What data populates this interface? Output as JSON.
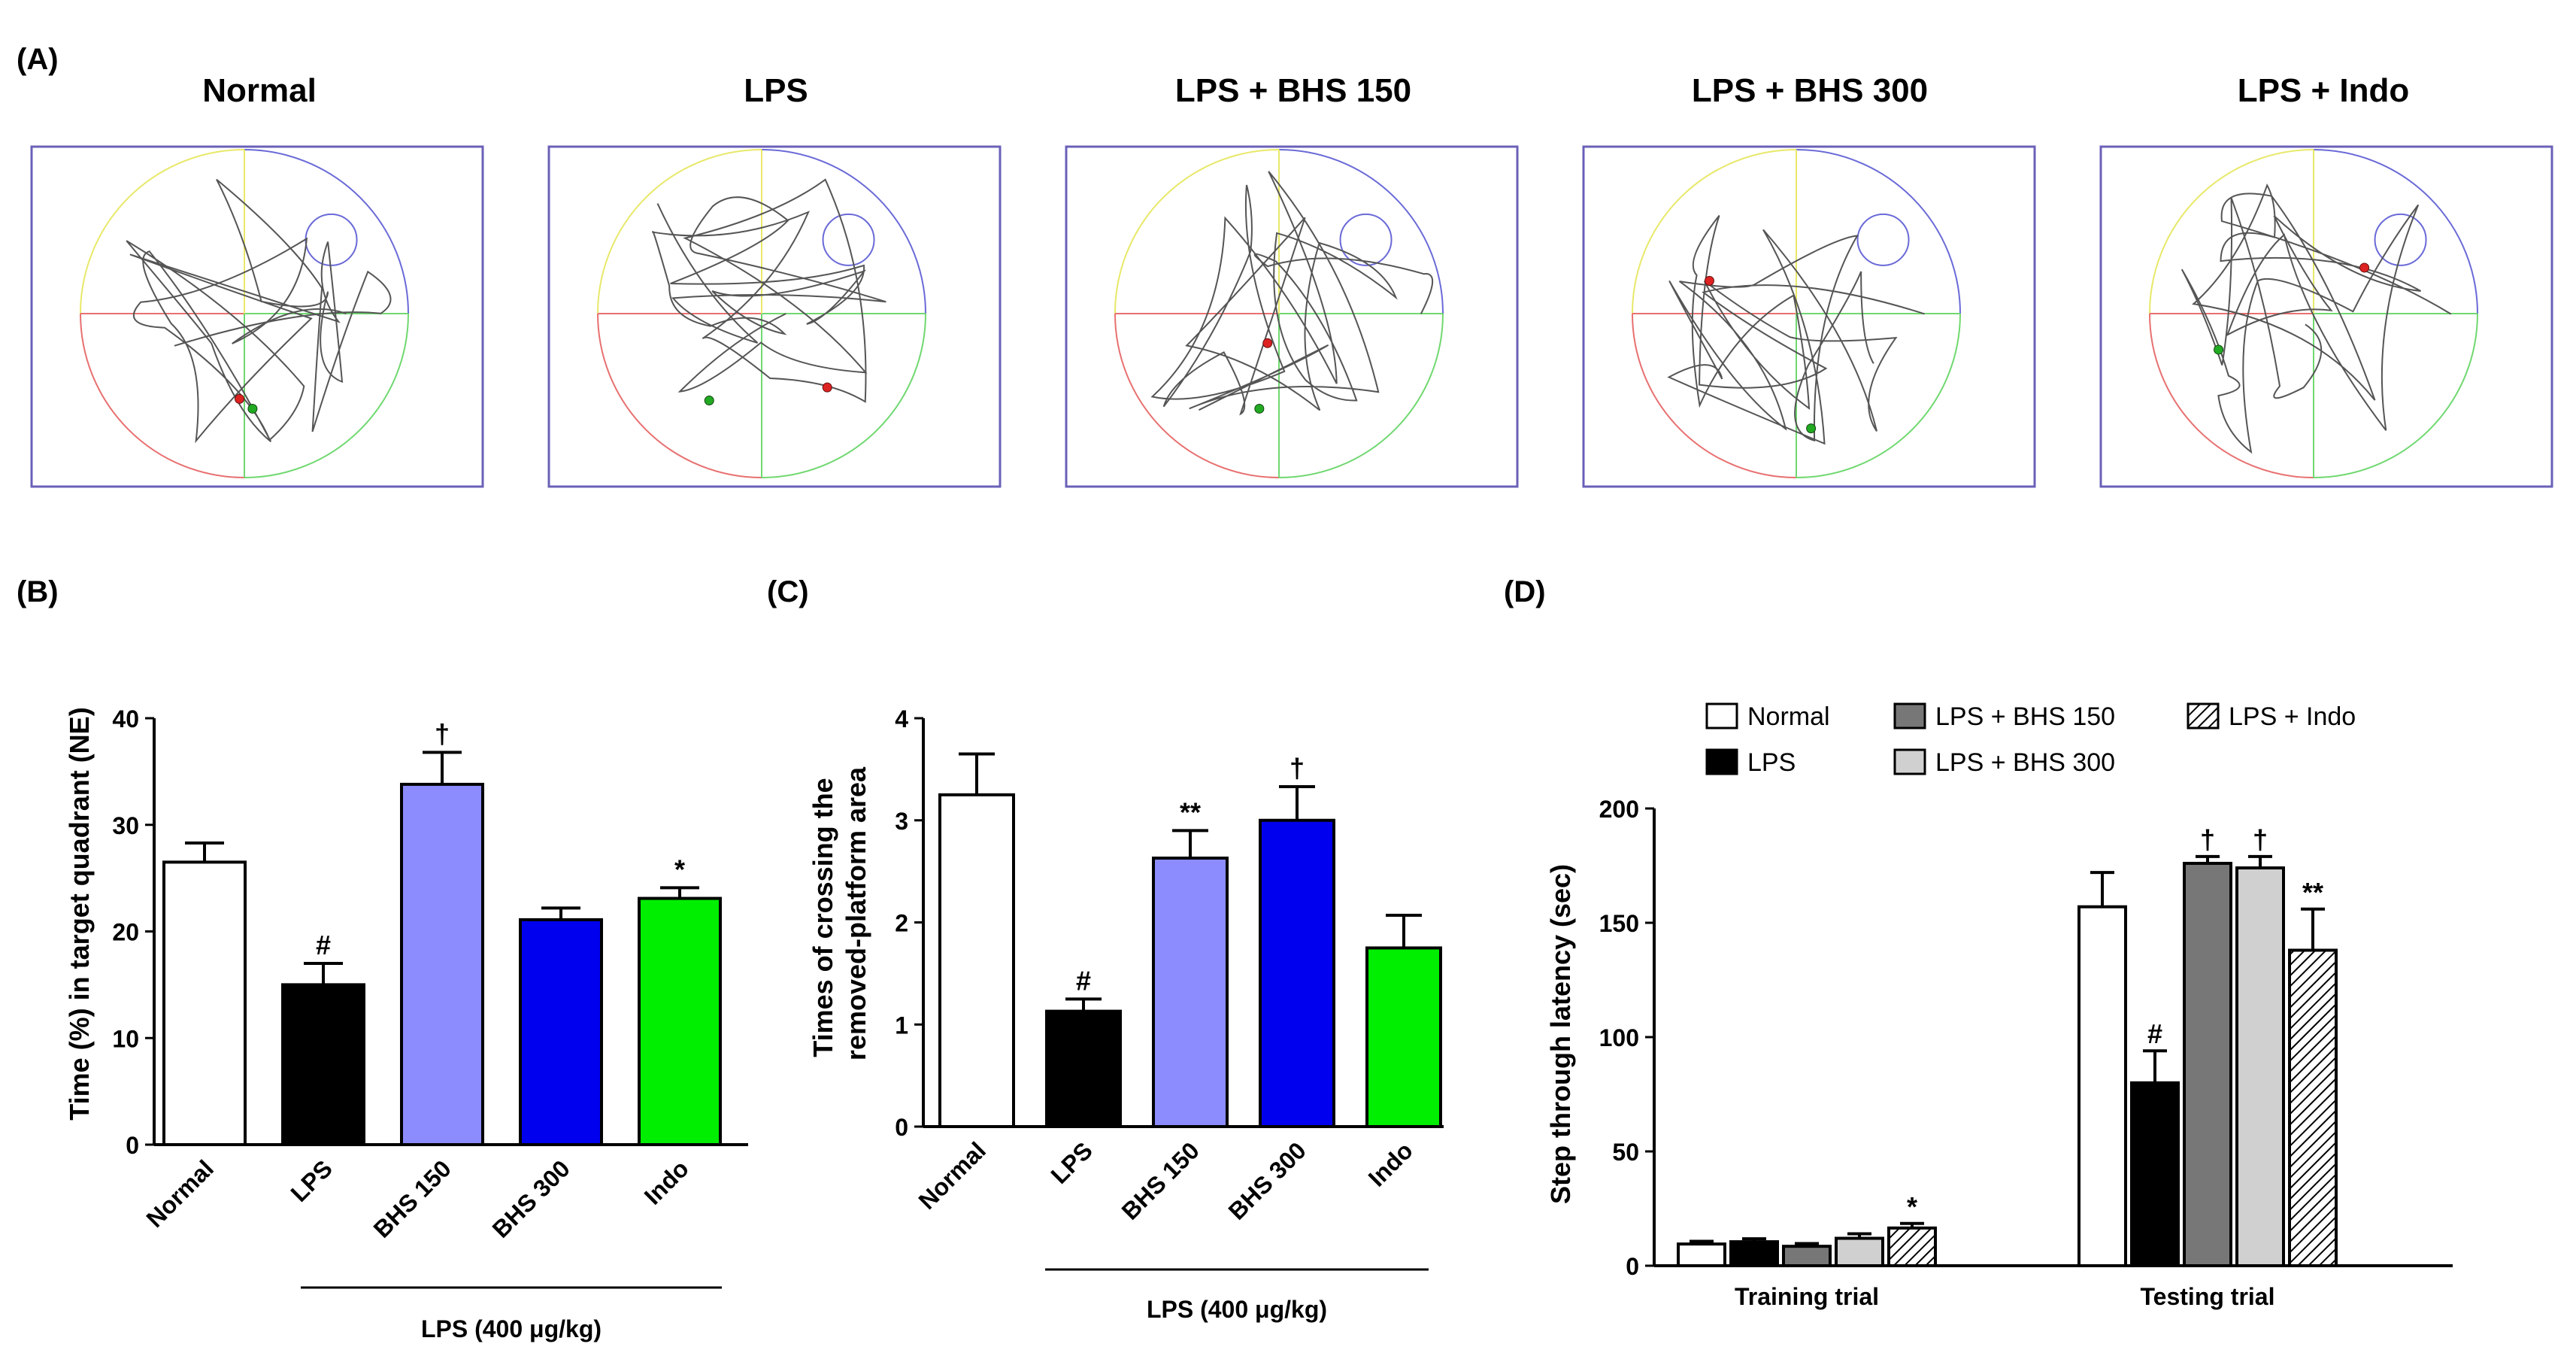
{
  "panel_labels": {
    "A": "(A)",
    "B": "(B)",
    "C": "(C)",
    "D": "(D)"
  },
  "panel_a": {
    "titles": [
      "Normal",
      "LPS",
      "LPS + BHS 150",
      "LPS + BHS 300",
      "LPS + Indo"
    ],
    "quadrant_colors": [
      "#e8e86a",
      "#6a6ad8",
      "#e87070",
      "#70d870"
    ],
    "frame_color": "#6a60b8",
    "start_marker_color": "#22aa22",
    "end_marker_color": "#dd2222"
  },
  "lps_label": "LPS (400 μg/kg)",
  "colors": {
    "normal": "#ffffff",
    "lps": "#000000",
    "bhs150": "#8c8cff",
    "bhs300": "#0000ee",
    "indo": "#00ee00",
    "bhs150_gray": "#777777",
    "bhs300_gray": "#d0d0d0"
  },
  "chart_data": [
    {
      "id": "B",
      "type": "bar",
      "ylabel": "Time (%) in target quadrant (NE)",
      "ylim": [
        0,
        40
      ],
      "yticks": [
        "0",
        "10",
        "20",
        "30",
        "40"
      ],
      "categories": [
        "Normal",
        "LPS",
        "BHS 150",
        "BHS 300",
        "Indo"
      ],
      "values": [
        26.5,
        15.0,
        33.8,
        21.1,
        23.1
      ],
      "errors": [
        1.8,
        2.0,
        3.0,
        1.1,
        1.0
      ],
      "significance": [
        "",
        "#",
        "†",
        "",
        "*"
      ],
      "fills": [
        "#ffffff",
        "#000000",
        "#8c8cff",
        "#0000ee",
        "#00ee00"
      ]
    },
    {
      "id": "C",
      "type": "bar",
      "ylabel": "Times of crossing the removed-platform area",
      "ylabel_lines": [
        "Times of crossing the",
        "removed-platform area"
      ],
      "ylim": [
        0,
        4
      ],
      "yticks": [
        "0",
        "1",
        "2",
        "3",
        "4"
      ],
      "categories": [
        "Normal",
        "LPS",
        "BHS 150",
        "BHS 300",
        "Indo"
      ],
      "values": [
        3.25,
        1.13,
        2.63,
        3.0,
        1.75
      ],
      "errors": [
        0.4,
        0.12,
        0.27,
        0.33,
        0.32
      ],
      "significance": [
        "",
        "#",
        "**",
        "†",
        ""
      ],
      "fills": [
        "#ffffff",
        "#000000",
        "#8c8cff",
        "#0000ee",
        "#00ee00"
      ]
    },
    {
      "id": "D",
      "type": "bar",
      "ylabel": "Step through latency (sec)",
      "ylim": [
        0,
        200
      ],
      "yticks": [
        "0",
        "50",
        "100",
        "150",
        "200"
      ],
      "categories": [
        "Training trial",
        "Testing trial"
      ],
      "series": [
        {
          "name": "Normal",
          "values": [
            9.5,
            157
          ],
          "errors": [
            1.2,
            15
          ],
          "significance": [
            "",
            ""
          ]
        },
        {
          "name": "LPS",
          "values": [
            10.5,
            80
          ],
          "errors": [
            1.3,
            14
          ],
          "significance": [
            "",
            "#"
          ]
        },
        {
          "name": "LPS + BHS 150",
          "values": [
            8.5,
            176
          ],
          "errors": [
            1.2,
            3
          ],
          "significance": [
            "",
            "†"
          ]
        },
        {
          "name": "LPS + BHS 300",
          "values": [
            12,
            174
          ],
          "errors": [
            2,
            5
          ],
          "significance": [
            "",
            "†"
          ]
        },
        {
          "name": "LPS + Indo",
          "values": [
            16.5,
            138
          ],
          "errors": [
            2,
            18
          ],
          "significance": [
            "*",
            "**"
          ]
        }
      ]
    }
  ]
}
